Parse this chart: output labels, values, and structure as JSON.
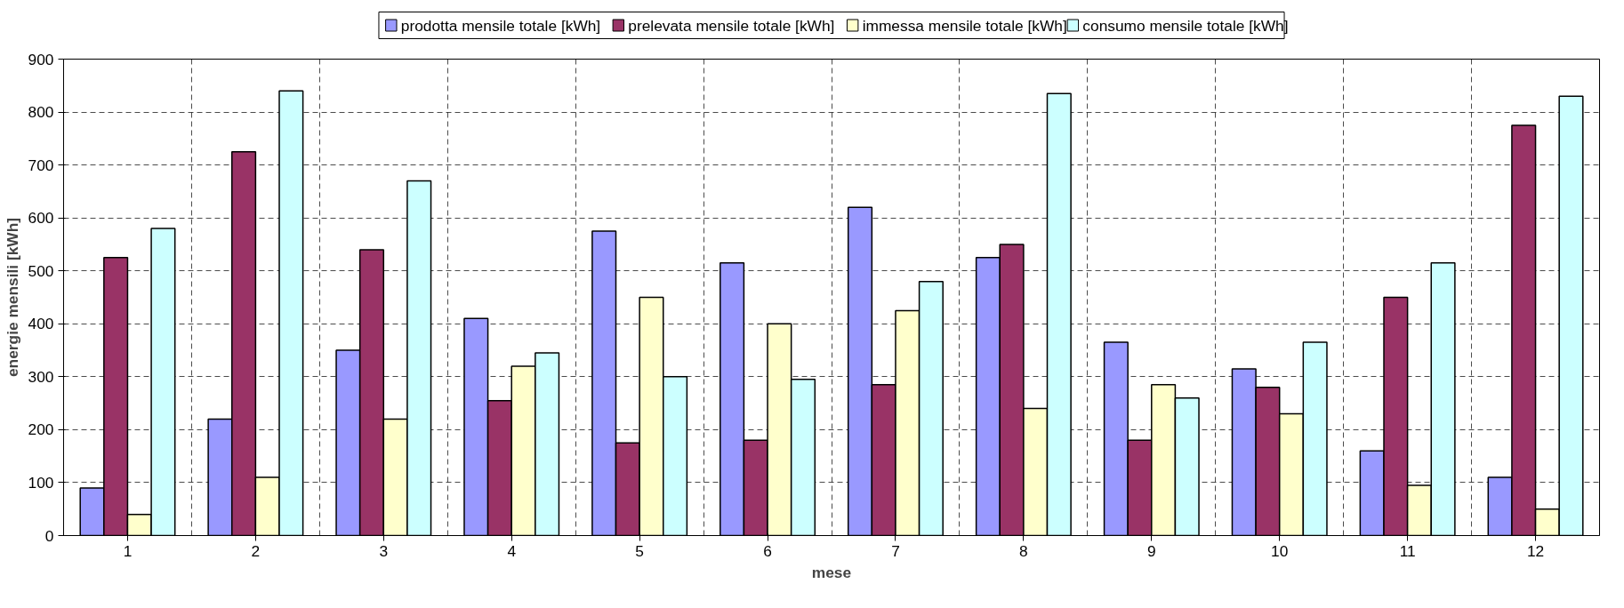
{
  "chart_data": {
    "type": "bar",
    "xlabel": "mese",
    "ylabel": "energie mensili [kWh]",
    "categories": [
      "1",
      "2",
      "3",
      "4",
      "5",
      "6",
      "7",
      "8",
      "9",
      "10",
      "11",
      "12"
    ],
    "series": [
      {
        "name": "prodotta mensile totale [kWh]",
        "color": "#9999ff",
        "values": [
          90,
          220,
          350,
          410,
          575,
          515,
          620,
          525,
          365,
          315,
          160,
          110
        ]
      },
      {
        "name": "prelevata mensile totale [kWh]",
        "color": "#993366",
        "values": [
          525,
          725,
          540,
          255,
          175,
          180,
          285,
          550,
          180,
          280,
          450,
          775
        ]
      },
      {
        "name": "immessa mensile totale [kWh]",
        "color": "#ffffcc",
        "values": [
          40,
          110,
          220,
          320,
          450,
          400,
          425,
          240,
          285,
          230,
          95,
          50
        ]
      },
      {
        "name": "consumo mensile totale [kWh]",
        "color": "#ccffff",
        "values": [
          580,
          840,
          670,
          345,
          300,
          295,
          480,
          835,
          260,
          365,
          515,
          830
        ]
      }
    ],
    "ylim": [
      0,
      900
    ],
    "yticks": [
      0,
      100,
      200,
      300,
      400,
      500,
      600,
      700,
      800,
      900
    ],
    "grid": true,
    "legend": "top"
  }
}
